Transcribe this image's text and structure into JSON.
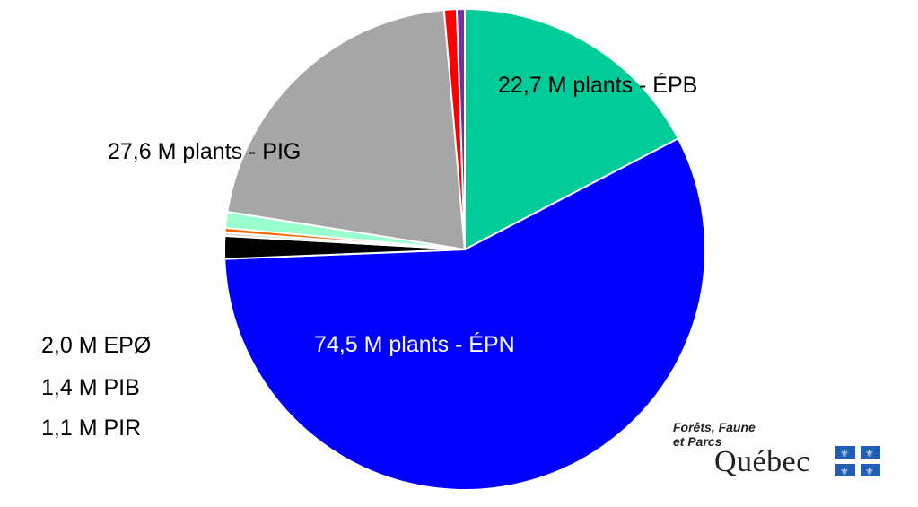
{
  "chart_data": {
    "type": "pie",
    "title": "",
    "slices": [
      {
        "code": "ÉPB",
        "value": 22.7,
        "color": "#00cc99",
        "label": "22,7 M plants - ÉPB",
        "label_color": "#000000"
      },
      {
        "code": "ÉPN",
        "value": 74.5,
        "color": "#0000ff",
        "label": "74,5 M plants - ÉPN",
        "label_color": "#ffffff"
      },
      {
        "code": "EPØ",
        "value": 2.0,
        "color": "#000000",
        "label": ""
      },
      {
        "code": "",
        "value": 0.3,
        "color": "#d9d9d9",
        "label": ""
      },
      {
        "code": "",
        "value": 0.4,
        "color": "#ff6600",
        "label": ""
      },
      {
        "code": "PIB",
        "value": 1.4,
        "color": "#99ffcc",
        "label": ""
      },
      {
        "code": "PIG",
        "value": 27.6,
        "color": "#a6a6a6",
        "label": "27,6 M plants - PIG",
        "label_color": "#000000"
      },
      {
        "code": "PIR",
        "value": 1.1,
        "color": "#ff0000",
        "label": ""
      },
      {
        "code": "",
        "value": 0.7,
        "color": "#7030a0",
        "label": ""
      }
    ],
    "side_labels": [
      "2,0 M EPØ",
      "1,4 M PIB",
      "1,1 M PIR"
    ]
  },
  "logo": {
    "line1": "Forêts, Faune",
    "line2": "et Parcs",
    "wordmark": "Québec"
  }
}
